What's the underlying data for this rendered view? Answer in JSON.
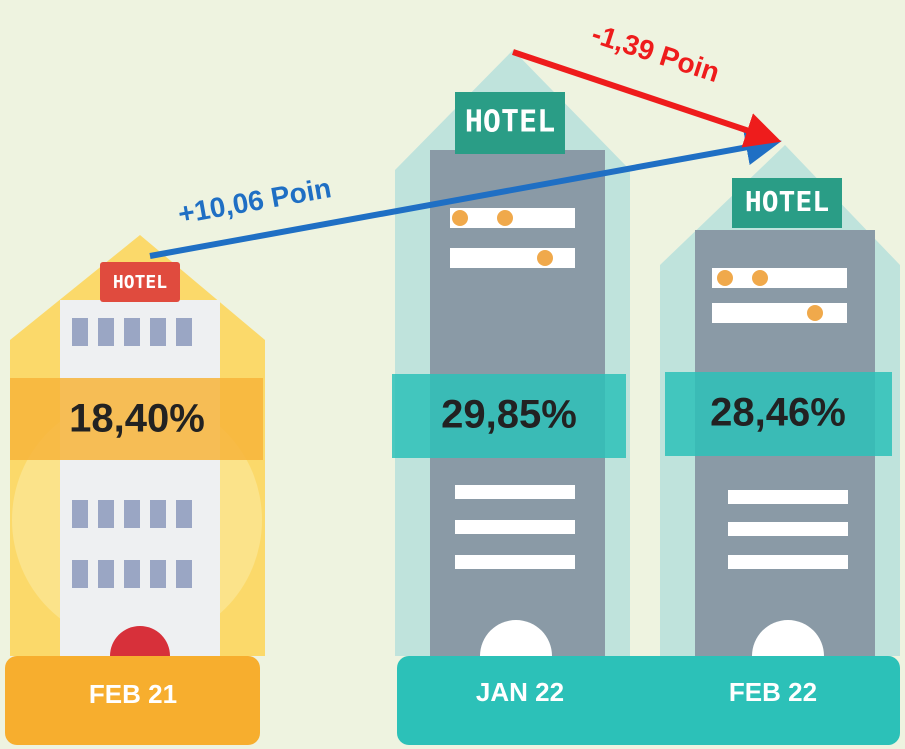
{
  "items": [
    {
      "period": "FEB 21",
      "value": "18,40%",
      "sign": "HOTEL"
    },
    {
      "period": "JAN 22",
      "value": "29,85%",
      "sign": "HOTEL"
    },
    {
      "period": "FEB 22",
      "value": "28,46%",
      "sign": "HOTEL"
    }
  ],
  "changes": [
    "+10,06 Poin",
    "-1,39 Poin"
  ]
}
